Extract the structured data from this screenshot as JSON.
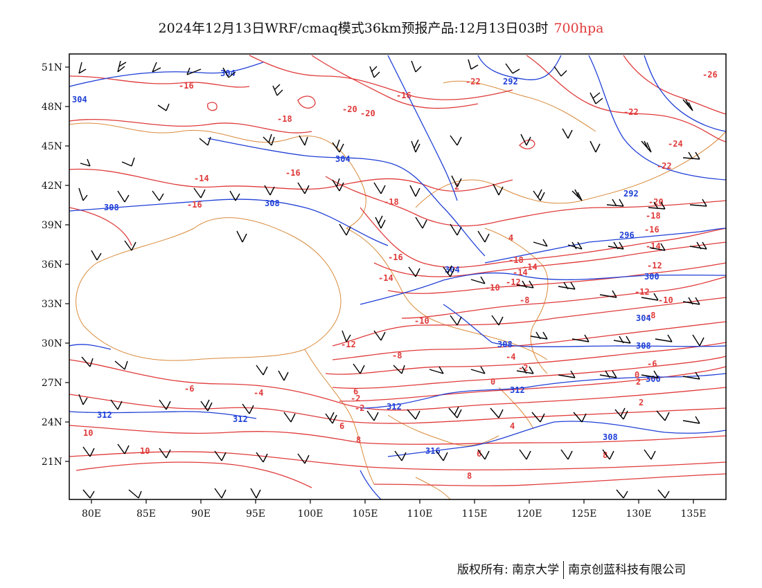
{
  "title": {
    "main": "2024年12月13日WRF/cmaq模式36km预报产品:12月13日03时",
    "level": "700hpa",
    "level_color": "#e03a3a"
  },
  "axes": {
    "lat_labels": [
      "51N",
      "48N",
      "45N",
      "42N",
      "39N",
      "36N",
      "33N",
      "30N",
      "27N",
      "24N",
      "21N"
    ],
    "lon_labels": [
      "80E",
      "85E",
      "90E",
      "95E",
      "100E",
      "105E",
      "110E",
      "115E",
      "120E",
      "125E",
      "130E",
      "135E"
    ]
  },
  "colors": {
    "temperature_contour": "#e03a3a",
    "height_contour": "#1f3fd6",
    "boundary": "#d98a3a",
    "wind_barb": "#000000"
  },
  "temperature_labels": [
    "-16",
    "-14",
    "-16",
    "-18",
    "-20",
    "-22",
    "-24",
    "-26",
    "-18",
    "-16",
    "-14",
    "-12",
    "-10",
    "-8",
    "-6",
    "-4",
    "-2",
    "0",
    "2",
    "4",
    "6",
    "8",
    "10",
    "-12",
    "-10",
    "-8",
    "-4",
    "-2",
    "2",
    "6",
    "8",
    "10",
    "-20",
    "-22",
    "-16",
    "-18",
    "-14",
    "-16",
    "-22",
    "-20",
    "-14",
    "-12",
    "-18",
    "-16",
    "-14",
    "-12",
    "-10",
    "-8",
    "-6",
    "-2",
    "0",
    "2",
    "4",
    "6",
    "8"
  ],
  "height_labels": [
    "304",
    "292",
    "304",
    "308",
    "308",
    "296",
    "304",
    "300",
    "304",
    "308",
    "312",
    "312",
    "312",
    "316",
    "308",
    "304",
    "312",
    "308",
    "292",
    "300"
  ],
  "footer": {
    "left": "版权所有: 南京大学",
    "right": "南京创蓝科技有限公司"
  }
}
